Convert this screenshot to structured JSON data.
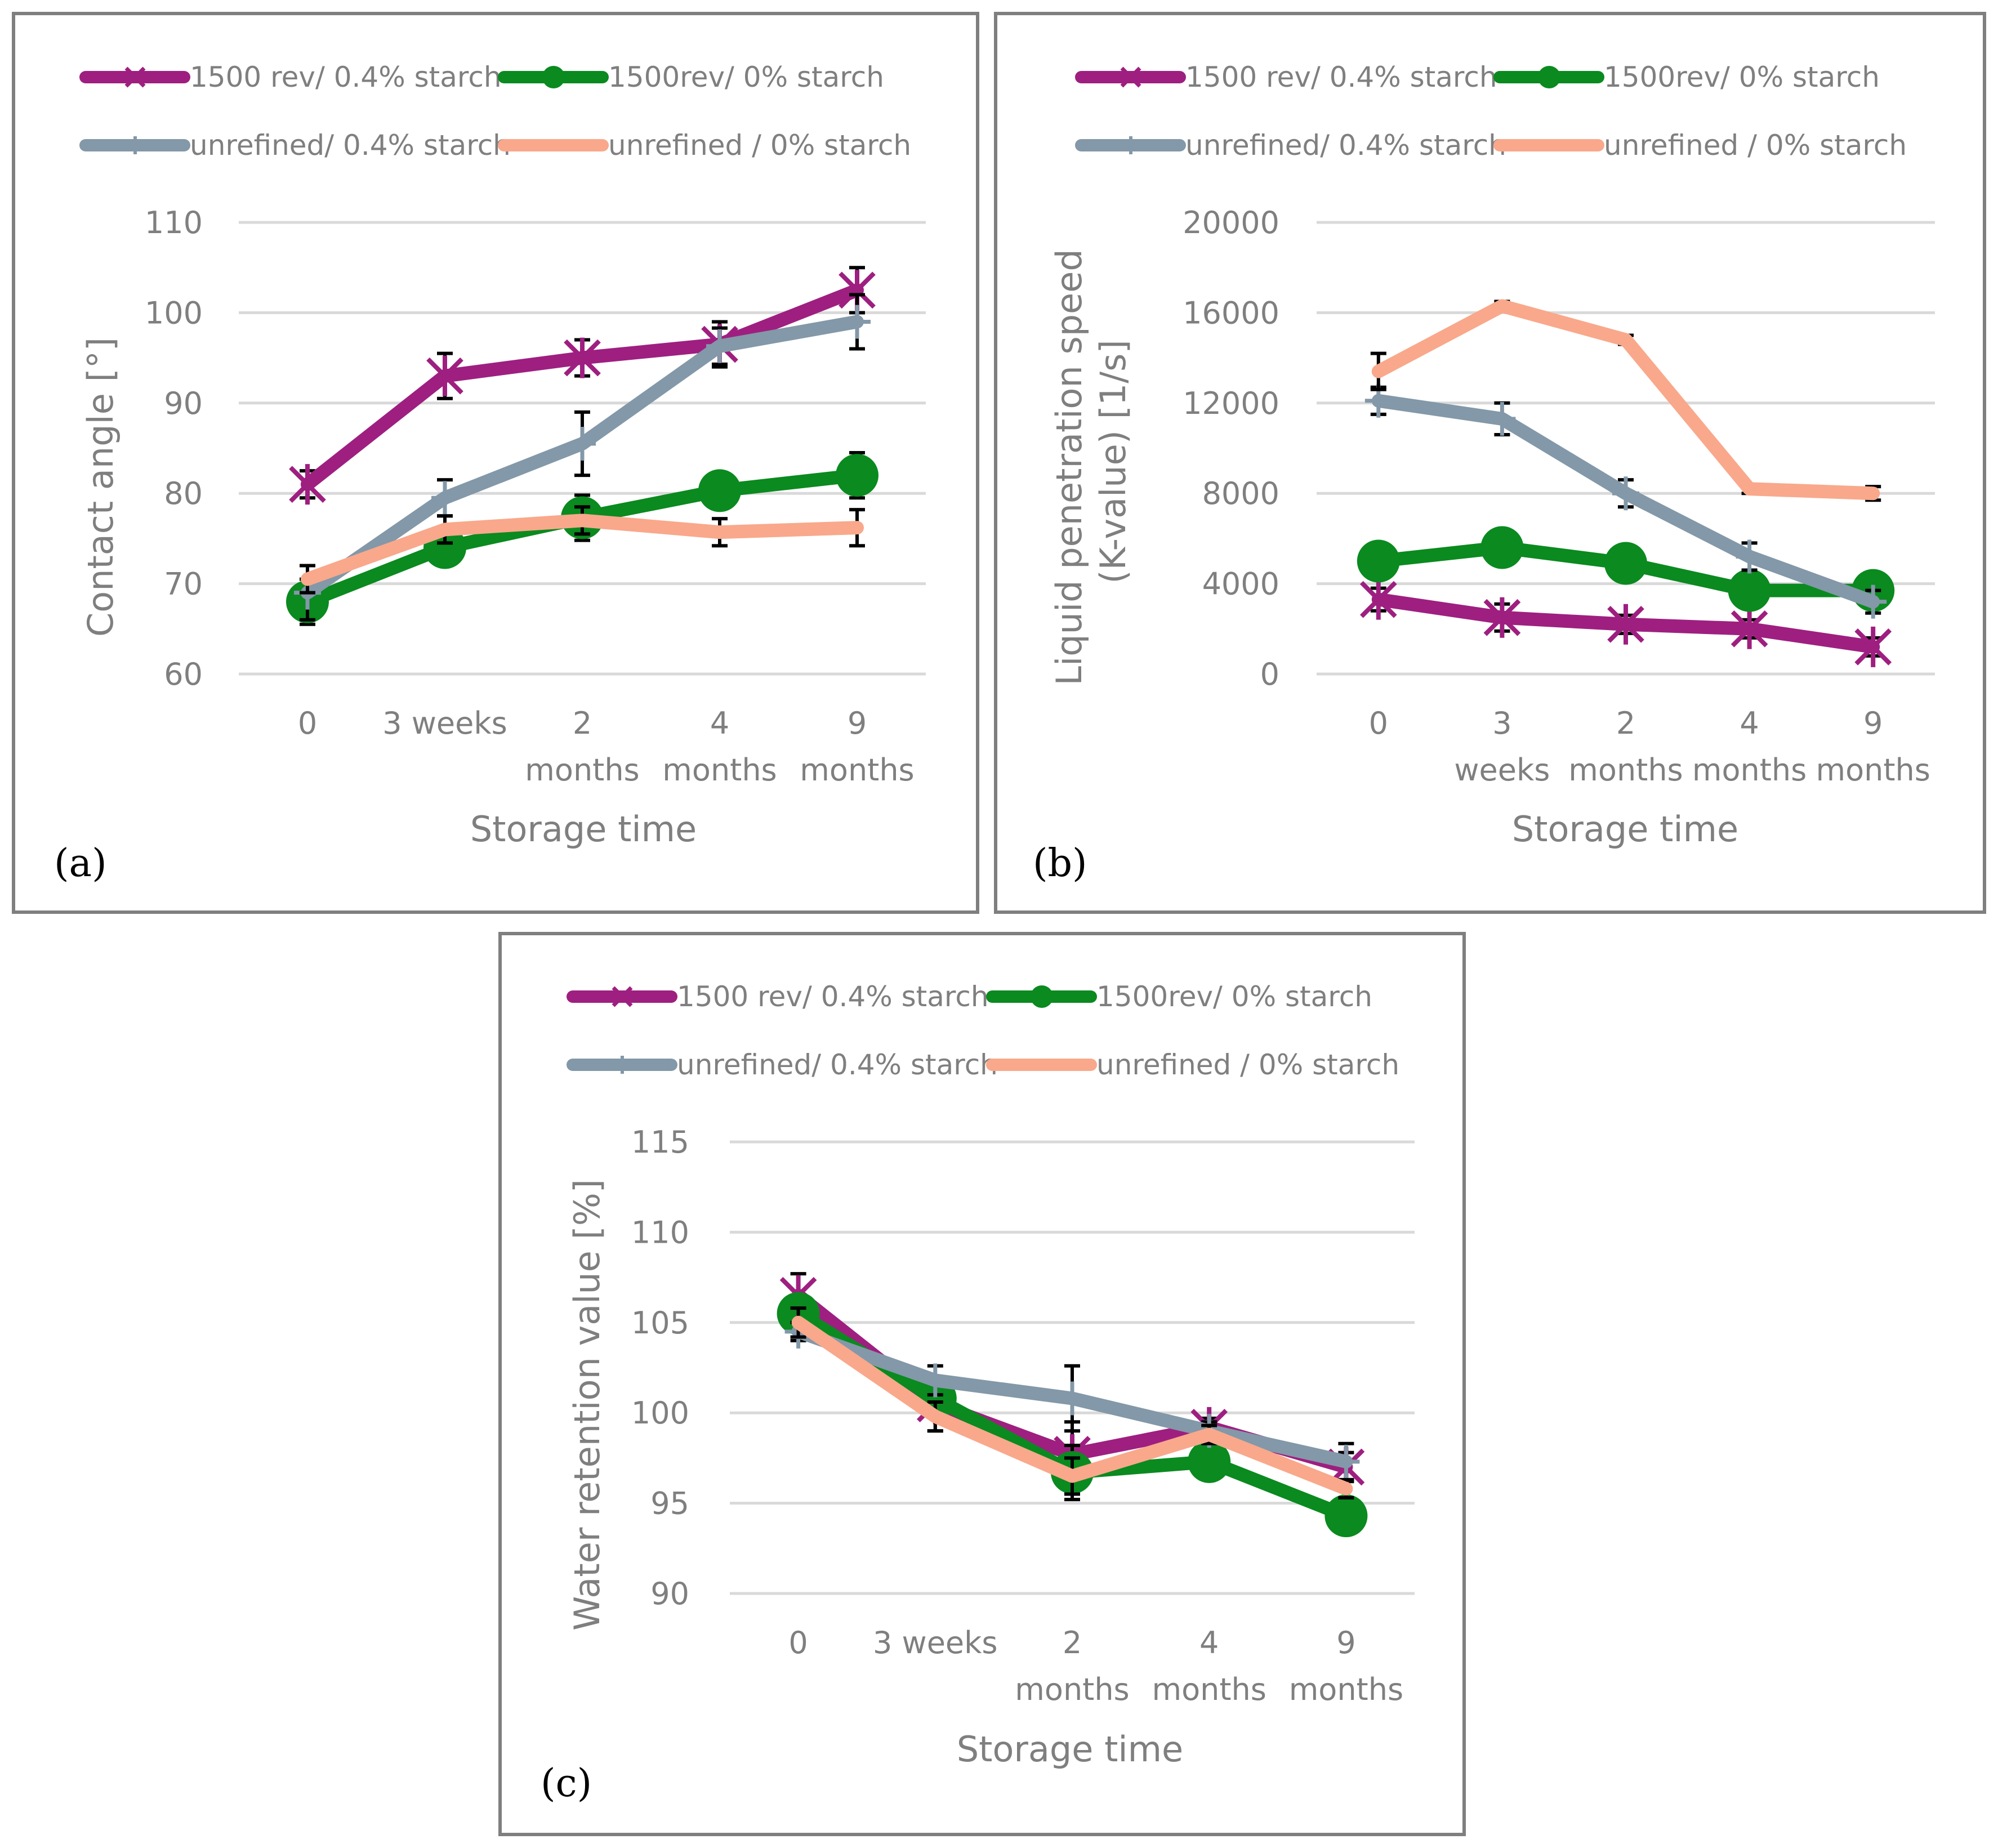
{
  "chart_data": [
    {
      "id": "a",
      "panel_label": "(a)",
      "type": "line",
      "ylabel": "Contact angle [°]",
      "xlabel": "Storage time",
      "ylim": [
        60,
        110
      ],
      "yticks": [
        "60",
        "70",
        "80",
        "90",
        "100",
        "110"
      ],
      "categories": [
        [
          "0"
        ],
        [
          "3 weeks"
        ],
        [
          "2",
          "months"
        ],
        [
          "4",
          "months"
        ],
        [
          "9",
          "months"
        ]
      ],
      "series": [
        {
          "name": "1500 rev/ 0.4% starch",
          "color": "#9e1f80",
          "marker": "x",
          "values": [
            81,
            93,
            95,
            96.5,
            102.5
          ],
          "errors": [
            1.5,
            2.5,
            2,
            2.5,
            2.5
          ]
        },
        {
          "name": "1500rev/ 0% starch",
          "color": "#0a8a1f",
          "marker": "circle",
          "values": [
            68,
            74,
            77.3,
            80.3,
            82
          ],
          "errors": [
            2.5,
            1.5,
            2.5,
            1.5,
            2.5
          ]
        },
        {
          "name": "unrefined/ 0.4% starch",
          "color": "#8398a8",
          "marker": "plus",
          "values": [
            69,
            79.5,
            85.5,
            96.3,
            99
          ],
          "errors": [
            3,
            2,
            3.5,
            2,
            3
          ]
        },
        {
          "name": "unrefined / 0% starch",
          "color": "#f9a88b",
          "marker": "none",
          "values": [
            70.5,
            76,
            77,
            75.7,
            76.2
          ],
          "errors": [
            1.5,
            1.5,
            1.5,
            1.5,
            2
          ]
        }
      ]
    },
    {
      "id": "b",
      "panel_label": "(b)",
      "type": "line",
      "ylabel": [
        "Liquid penetration speed",
        "(K-value) [1/s]"
      ],
      "xlabel": "Storage time",
      "ylim": [
        0,
        20000
      ],
      "yticks": [
        "0",
        "4000",
        "8000",
        "12000",
        "16000",
        "20000"
      ],
      "categories": [
        [
          "0"
        ],
        [
          "3",
          "weeks"
        ],
        [
          "2",
          "months"
        ],
        [
          "4",
          "months"
        ],
        [
          "9",
          "months"
        ]
      ],
      "series": [
        {
          "name": "1500 rev/ 0.4% starch",
          "color": "#9e1f80",
          "marker": "x",
          "values": [
            3300,
            2500,
            2200,
            2000,
            1200
          ],
          "errors": [
            500,
            600,
            400,
            400,
            400
          ]
        },
        {
          "name": "1500rev/ 0% starch",
          "color": "#0a8a1f",
          "marker": "circle",
          "values": [
            5000,
            5600,
            4900,
            3700,
            3700
          ],
          "errors": [
            300,
            300,
            300,
            300,
            300
          ]
        },
        {
          "name": "unrefined/ 0.4% starch",
          "color": "#8398a8",
          "marker": "plus",
          "values": [
            12100,
            11300,
            8000,
            5200,
            3200
          ],
          "errors": [
            600,
            700,
            600,
            600,
            500
          ]
        },
        {
          "name": "unrefined / 0% starch",
          "color": "#f9a88b",
          "marker": "none",
          "values": [
            13400,
            16300,
            14800,
            8200,
            8000
          ],
          "errors": [
            800,
            200,
            200,
            200,
            300
          ]
        }
      ]
    },
    {
      "id": "c",
      "panel_label": "(c)",
      "type": "line",
      "ylabel": "Water retention value [%]",
      "xlabel": "Storage time",
      "ylim": [
        90,
        115
      ],
      "yticks": [
        "90",
        "95",
        "100",
        "105",
        "110",
        "115"
      ],
      "categories": [
        [
          "0"
        ],
        [
          "3 weeks"
        ],
        [
          "2",
          "months"
        ],
        [
          "4",
          "months"
        ],
        [
          "9",
          "months"
        ]
      ],
      "series": [
        {
          "name": "1500 rev/ 0.4% starch",
          "color": "#9e1f80",
          "marker": "x",
          "values": [
            106.5,
            100.5,
            97.7,
            99.2,
            97
          ],
          "errors": [
            1.2,
            1.5,
            1.8,
            0.5,
            0.8
          ]
        },
        {
          "name": "1500rev/ 0% starch",
          "color": "#0a8a1f",
          "marker": "circle",
          "values": [
            105.5,
            100.8,
            96.7,
            97.3,
            94.3
          ],
          "errors": [
            0.8,
            0.8,
            1.5,
            0.5,
            0.5
          ]
        },
        {
          "name": "unrefined/ 0.4% starch",
          "color": "#8398a8",
          "marker": "plus",
          "values": [
            104.5,
            101.8,
            100.8,
            99,
            97.3
          ],
          "errors": [
            0.5,
            0.8,
            1.8,
            0.5,
            1
          ]
        },
        {
          "name": "unrefined / 0% starch",
          "color": "#f9a88b",
          "marker": "none",
          "values": [
            105,
            99.8,
            96.5,
            98.8,
            95.8
          ],
          "errors": [
            0.8,
            0.8,
            1,
            0.5,
            0.5
          ]
        }
      ]
    }
  ]
}
